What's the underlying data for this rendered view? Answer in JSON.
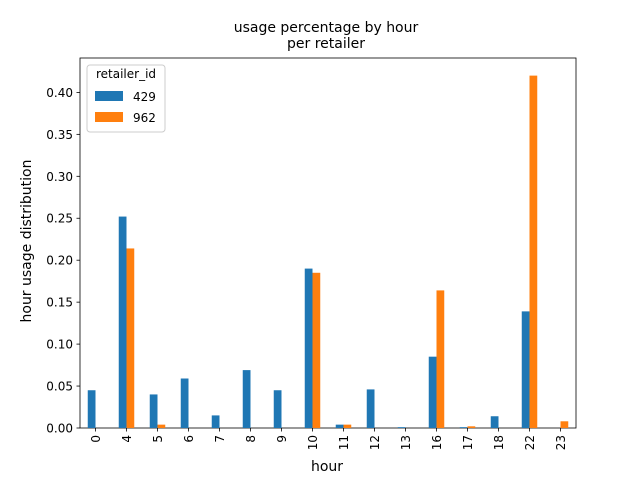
{
  "chart_data": {
    "type": "bar",
    "title": "usage percentage by hour\nper retailer",
    "xlabel": "hour",
    "ylabel": "hour usage distribution",
    "categories": [
      "0",
      "4",
      "5",
      "6",
      "7",
      "8",
      "9",
      "10",
      "11",
      "12",
      "13",
      "16",
      "17",
      "18",
      "22",
      "23"
    ],
    "series": [
      {
        "name": "429",
        "color": "#1f77b4",
        "values": [
          0.045,
          0.252,
          0.04,
          0.059,
          0.015,
          0.069,
          0.045,
          0.19,
          0.004,
          0.046,
          0.001,
          0.085,
          0.001,
          0.014,
          0.139,
          0.0
        ]
      },
      {
        "name": "962",
        "color": "#ff7f0e",
        "values": [
          0.0,
          0.214,
          0.004,
          0.0,
          0.0,
          0.0,
          0.0,
          0.185,
          0.004,
          0.0,
          0.0,
          0.164,
          0.002,
          0.0,
          0.42,
          0.008
        ]
      }
    ],
    "yticks": [
      0.0,
      0.05,
      0.1,
      0.15,
      0.2,
      0.25,
      0.3,
      0.35,
      0.4
    ],
    "ytick_labels": [
      "0.00",
      "0.05",
      "0.10",
      "0.15",
      "0.20",
      "0.25",
      "0.30",
      "0.35",
      "0.40"
    ],
    "ylim": [
      0,
      0.441
    ],
    "legend": {
      "title": "retailer_id",
      "placement": "top-left"
    },
    "grid": false
  }
}
